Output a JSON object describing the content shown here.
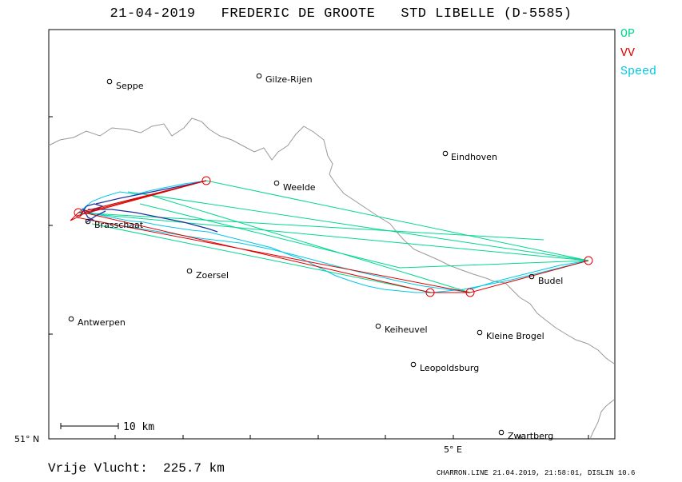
{
  "title": "21-04-2019   FREDERIC DE GROOTE   STD LIBELLE (D-5585)",
  "legend": [
    {
      "label": "OP",
      "color": "#00d890"
    },
    {
      "label": "VV",
      "color": "#e00000"
    },
    {
      "label": "Speed",
      "color": "#00c8e8"
    }
  ],
  "axes": {
    "lat_label": "51° N",
    "lon_label": "5° E"
  },
  "scale_bar": {
    "label": "10 km"
  },
  "cities": [
    {
      "name": "Seppe"
    },
    {
      "name": "Gilze-Rijen"
    },
    {
      "name": "Eindhoven"
    },
    {
      "name": "Weelde"
    },
    {
      "name": "Brasschaat"
    },
    {
      "name": "Zoersel"
    },
    {
      "name": "Budel"
    },
    {
      "name": "Antwerpen"
    },
    {
      "name": "Keiheuvel"
    },
    {
      "name": "Kleine Brogel"
    },
    {
      "name": "Leopoldsburg"
    },
    {
      "name": "Zwartberg"
    }
  ],
  "footer": {
    "distance": "Vrije Vlucht:  225.7 km",
    "software": "CHARRON.LINE 21.04.2019, 21:58:01, DISLIN 10.6"
  },
  "colors": {
    "border": "#999999",
    "track": "#00c8e8",
    "track_dark": "#2030a0",
    "op": "#00d890",
    "vv": "#e00000"
  }
}
